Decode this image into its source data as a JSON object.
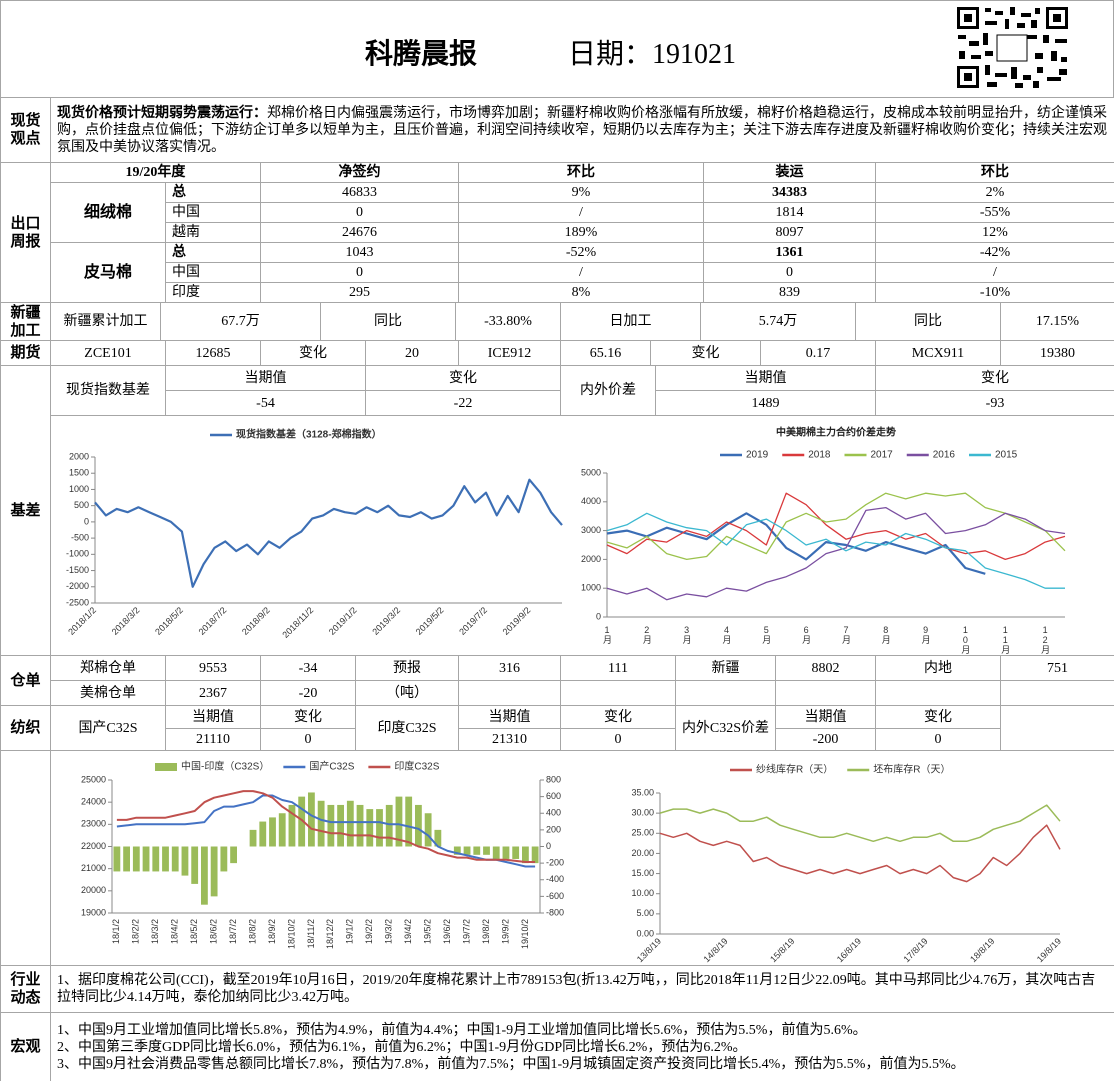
{
  "header": {
    "title": "科腾晨报",
    "date": "日期：191021"
  },
  "view": {
    "label": "现货观点",
    "lead": "现货价格预计短期弱势震荡运行：",
    "text": "郑棉价格日内偏强震荡运行，市场博弈加剧；新疆籽棉收购价格涨幅有所放缓，棉籽价格趋稳运行，皮棉成本较前明显抬升，纺企谨慎采购，点价挂盘点位偏低；下游纺企订单多以短单为主，且压价普遍，利润空间持续收窄，短期仍以去库存为主；关注下游去库存进度及新疆籽棉收购价变化；持续关注宏观氛围及中美协议落实情况。"
  },
  "export": {
    "label": "出口周报",
    "columns": [
      "19/20年度",
      "净签约",
      "环比",
      "装运",
      "环比"
    ],
    "groups": [
      {
        "name": "细绒棉",
        "rows": [
          [
            "总",
            "46833",
            "9%",
            "34383",
            "2%"
          ],
          [
            "中国",
            "0",
            "/",
            "1814",
            "-55%"
          ],
          [
            "越南",
            "24676",
            "189%",
            "8097",
            "12%"
          ]
        ]
      },
      {
        "name": "皮马棉",
        "rows": [
          [
            "总",
            "1043",
            "-52%",
            "1361",
            "-42%"
          ],
          [
            "中国",
            "0",
            "/",
            "0",
            "/"
          ],
          [
            "印度",
            "295",
            "8%",
            "839",
            "-10%"
          ]
        ]
      }
    ]
  },
  "xinjiang": {
    "label": "新疆加工",
    "cells": [
      "新疆累计加工",
      "67.7万",
      "同比",
      "-33.80%",
      "日加工",
      "5.74万",
      "同比",
      "17.15%"
    ]
  },
  "futures": {
    "label": "期货",
    "cells": [
      "ZCE101",
      "12685",
      "变化",
      "20",
      "ICE912",
      "65.16",
      "变化",
      "0.17",
      "MCX911",
      "19380"
    ]
  },
  "index_basis": {
    "name": "现货指数基差",
    "head": [
      "当期值",
      "变化"
    ],
    "values": [
      "-54",
      "-22"
    ],
    "name2": "内外价差",
    "head2": [
      "当期值",
      "变化"
    ],
    "values2": [
      "1489",
      "-93"
    ]
  },
  "basis": {
    "label": "基差"
  },
  "warehouse": {
    "label": "仓单",
    "rows": [
      [
        "郑棉仓单",
        "9553",
        "-34",
        "预报",
        "316",
        "111",
        "新疆",
        "8802",
        "内地",
        "751"
      ],
      [
        "美棉仓单",
        "2367",
        "-20",
        "（吨）"
      ]
    ]
  },
  "textile": {
    "label": "纺织",
    "groups": [
      {
        "name": "国产C32S",
        "head": [
          "当期值",
          "变化"
        ],
        "values": [
          "21110",
          "0"
        ]
      },
      {
        "name": "印度C32S",
        "head": [
          "当期值",
          "变化"
        ],
        "values": [
          "21310",
          "0"
        ]
      },
      {
        "name": "内外C32S价差",
        "head": [
          "当期值",
          "变化"
        ],
        "values": [
          "-200",
          "0"
        ]
      }
    ]
  },
  "industry": {
    "label": "行业动态",
    "text": "1、据印度棉花公司(CCI)，截至2019年10月16日，2019/20年度棉花累计上市789153包(折13.42万吨，，同比2018年11月12日少22.09吨。其中马邦同比少4.76万，其次吨古吉拉特同比少4.14万吨，泰伦加纳同比少3.42万吨。"
  },
  "macro": {
    "label": "宏观",
    "lines": [
      "1、中国9月工业增加值同比增长5.8%，预估为4.9%，前值为4.4%；中国1-9月工业增加值同比增长5.6%，预估为5.5%，前值为5.6%。",
      "2、中国第三季度GDP同比增长6.0%，预估为6.1%，前值为6.2%；中国1-9月份GDP同比增长6.2%，预估为6.2%。",
      "3、中国9月社会消费品零售总额同比增长7.8%，预估为7.8%，前值为7.5%；中国1-9月城镇固定资产投资同比增长5.4%，预估为5.5%，前值为5.5%。"
    ]
  },
  "chart_data": [
    {
      "type": "line",
      "categories": [
        "2018/1/2",
        null,
        null,
        null,
        "2018/3/2",
        null,
        null,
        null,
        "2018/5/2",
        null,
        null,
        null,
        "2018/7/2",
        null,
        null,
        null,
        "2018/9/2",
        null,
        null,
        null,
        "2018/11/2",
        null,
        null,
        null,
        "2019/1/2",
        null,
        null,
        null,
        "2019/3/2",
        null,
        null,
        null,
        "2019/5/2",
        null,
        null,
        null,
        "2019/7/2",
        null,
        null,
        null,
        "2019/9/2",
        null,
        null,
        null
      ],
      "series": [
        {
          "name": "现货指数基差（3128-郑棉指数）",
          "color": "#3d6fb5",
          "values": [
            600,
            200,
            400,
            300,
            450,
            300,
            150,
            0,
            -300,
            -2000,
            -1300,
            -800,
            -600,
            -900,
            -700,
            -1000,
            -600,
            -800,
            -500,
            -300,
            100,
            200,
            400,
            300,
            250,
            450,
            300,
            500,
            200,
            150,
            300,
            100,
            200,
            500,
            1100,
            600,
            900,
            200,
            800,
            300,
            1300,
            900,
            300,
            -100
          ]
        }
      ],
      "ylim": [
        -2500,
        2000
      ],
      "yticks": [
        -2500,
        -2000,
        -1500,
        -1000,
        -500,
        0,
        500,
        1000,
        1500,
        2000
      ]
    },
    {
      "type": "line",
      "title": "中美期棉主力合约价差走势",
      "categories": [
        "1月",
        null,
        "2月",
        null,
        "3月",
        null,
        "4月",
        null,
        "5月",
        null,
        "6月",
        null,
        "7月",
        null,
        "8月",
        null,
        "9月",
        null,
        "10月",
        null,
        "11月",
        null,
        "12月",
        null
      ],
      "series": [
        {
          "name": "2019",
          "color": "#3a6db5",
          "values": [
            2900,
            3000,
            2800,
            3100,
            2900,
            2700,
            3200,
            3600,
            3200,
            2400,
            2000,
            2600,
            2500,
            2300,
            2600,
            2400,
            2200,
            2500,
            1700,
            1500,
            null,
            null,
            null,
            null
          ]
        },
        {
          "name": "2018",
          "color": "#d9393b",
          "values": [
            2500,
            2200,
            2700,
            2600,
            3000,
            2800,
            3300,
            3000,
            2500,
            4300,
            3900,
            3200,
            2700,
            2900,
            3000,
            2700,
            2900,
            2400,
            2200,
            2300,
            2000,
            2200,
            2600,
            2800
          ]
        },
        {
          "name": "2017",
          "color": "#9bc24c",
          "values": [
            2600,
            2400,
            2800,
            2200,
            2000,
            2100,
            2800,
            2500,
            2200,
            3300,
            3600,
            3300,
            3400,
            3900,
            4300,
            4100,
            4300,
            4200,
            4300,
            3800,
            3600,
            3300,
            3000,
            2300
          ]
        },
        {
          "name": "2016",
          "color": "#7a4fa0",
          "values": [
            1000,
            800,
            1000,
            600,
            800,
            700,
            1000,
            900,
            1200,
            1400,
            1700,
            2200,
            2400,
            3700,
            3800,
            3400,
            3600,
            2900,
            3000,
            3200,
            3600,
            3400,
            3000,
            2900
          ]
        },
        {
          "name": "2015",
          "color": "#3bb8d0",
          "values": [
            3000,
            3200,
            3600,
            3300,
            3100,
            3000,
            2500,
            3200,
            3400,
            3000,
            2500,
            2700,
            2300,
            2600,
            2500,
            2900,
            2700,
            2400,
            2300,
            1700,
            1500,
            1300,
            1000,
            1000
          ]
        }
      ],
      "ylim": [
        0,
        5000
      ],
      "yticks": [
        0,
        1000,
        2000,
        3000,
        4000,
        5000
      ]
    },
    {
      "type": "combo",
      "categories": [
        "18/1/2",
        null,
        "18/2/2",
        null,
        "18/3/2",
        null,
        "18/4/2",
        null,
        "18/5/2",
        null,
        "18/6/2",
        null,
        "18/7/2",
        null,
        "18/8/2",
        null,
        "18/9/2",
        null,
        "18/10/2",
        null,
        "18/11/2",
        null,
        "18/12/2",
        null,
        "19/1/2",
        null,
        "19/2/2",
        null,
        "19/3/2",
        null,
        "19/4/2",
        null,
        "19/5/2",
        null,
        "19/6/2",
        null,
        "19/7/2",
        null,
        "19/8/2",
        null,
        "19/9/2",
        null,
        "19/10/2",
        null
      ],
      "series": [
        {
          "name": "中国-印度（C32S）",
          "type": "bar",
          "axis": "y2",
          "color": "#9bbb59",
          "values": [
            -300,
            -300,
            -300,
            -300,
            -300,
            -300,
            -300,
            -350,
            -450,
            -700,
            -600,
            -300,
            -200,
            0,
            200,
            300,
            350,
            400,
            500,
            600,
            650,
            550,
            500,
            500,
            550,
            500,
            450,
            450,
            500,
            600,
            600,
            500,
            400,
            200,
            0,
            -100,
            -100,
            -100,
            -100,
            -150,
            -150,
            -150,
            -200,
            -200
          ]
        },
        {
          "name": "国产C32S",
          "type": "line",
          "color": "#4472c4",
          "values": [
            22900,
            22950,
            23000,
            23000,
            23000,
            23000,
            23000,
            23000,
            23050,
            23100,
            23600,
            23800,
            23800,
            23900,
            24000,
            24300,
            24300,
            24100,
            24000,
            23700,
            23400,
            23200,
            23100,
            23100,
            23100,
            23100,
            23100,
            23100,
            23000,
            23000,
            22900,
            22800,
            22500,
            22000,
            21800,
            21700,
            21600,
            21500,
            21400,
            21400,
            21300,
            21200,
            21100,
            21100
          ]
        },
        {
          "name": "印度C32S",
          "type": "line",
          "color": "#c0504d",
          "values": [
            23200,
            23200,
            23300,
            23300,
            23300,
            23300,
            23400,
            23500,
            23600,
            24000,
            24200,
            24300,
            24400,
            24500,
            24500,
            24400,
            24200,
            23800,
            23500,
            23200,
            22800,
            22700,
            22600,
            22600,
            22500,
            22500,
            22500,
            22400,
            22400,
            22300,
            22200,
            22000,
            21900,
            21700,
            21600,
            21500,
            21500,
            21400,
            21400,
            21400,
            21400,
            21350,
            21300,
            21300
          ]
        }
      ],
      "ylim": [
        19000,
        25000
      ],
      "yticks": [
        19000,
        20000,
        21000,
        22000,
        23000,
        24000,
        25000
      ],
      "y2lim": [
        -800,
        800
      ],
      "y2ticks": [
        -800,
        -600,
        -400,
        -200,
        0,
        200,
        400,
        600,
        800
      ]
    },
    {
      "type": "line",
      "categories": [
        "13/8/19",
        null,
        null,
        null,
        null,
        "14/8/19",
        null,
        null,
        null,
        null,
        "15/8/19",
        null,
        null,
        null,
        null,
        "16/8/19",
        null,
        null,
        null,
        null,
        "17/8/19",
        null,
        null,
        null,
        null,
        "18/8/19",
        null,
        null,
        null,
        null,
        "19/8/19"
      ],
      "series": [
        {
          "name": "纱线库存R（天）",
          "color": "#c0504d",
          "values": [
            25,
            24,
            25,
            23,
            22,
            23,
            22,
            18,
            19,
            17,
            16,
            15,
            16,
            15,
            16,
            15,
            16,
            17,
            15,
            16,
            15,
            17,
            14,
            13,
            15,
            19,
            17,
            20,
            24,
            27,
            21
          ]
        },
        {
          "name": "坯布库存R（天）",
          "color": "#9bbb59",
          "values": [
            30,
            31,
            31,
            30,
            31,
            30,
            28,
            28,
            29,
            27,
            26,
            25,
            24,
            24,
            25,
            24,
            23,
            24,
            23,
            24,
            24,
            25,
            23,
            23,
            24,
            26,
            27,
            28,
            30,
            32,
            28
          ]
        }
      ],
      "ylim": [
        0,
        35
      ],
      "yticks": [
        {
          "value": 0,
          "label": "0.00"
        },
        {
          "value": 5,
          "label": "5.00"
        },
        {
          "value": 10,
          "label": "10.00"
        },
        {
          "value": 15,
          "label": "15.00"
        },
        {
          "value": 20,
          "label": "20.00"
        },
        {
          "value": 25,
          "label": "25.00"
        },
        {
          "value": 30,
          "label": "30.00"
        },
        {
          "value": 35,
          "label": "35.00"
        }
      ]
    }
  ]
}
